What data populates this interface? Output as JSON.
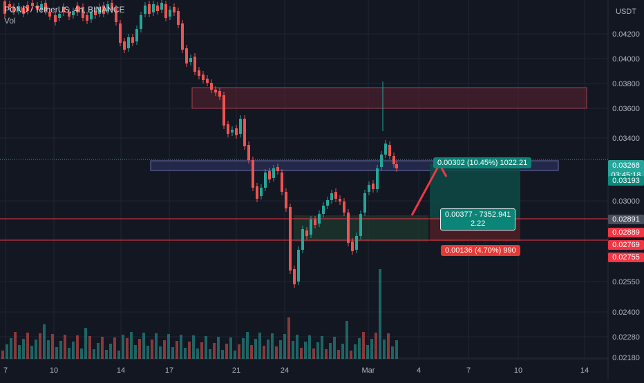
{
  "legend": {
    "symbol": "POND / TetherUS, 4h, BINANCE",
    "vol_label": "Vol"
  },
  "price_axis": {
    "currency": "USDT",
    "ticks": [
      "0.04200",
      "0.04000",
      "0.03800",
      "0.03600",
      "0.03400",
      "0.03000",
      "0.02550",
      "0.02400",
      "0.02280",
      "0.02180"
    ]
  },
  "price_tags": {
    "current_price": "0.03268",
    "countdown": "03:45:18",
    "price_2": "0.03193",
    "price_3": "0.02891",
    "price_4": "0.02889",
    "price_5": "0.02769",
    "price_6": "0.02755"
  },
  "time_axis": {
    "labels": [
      "7",
      "10",
      "14",
      "17",
      "21",
      "24",
      "Mar",
      "4",
      "7",
      "10",
      "14"
    ]
  },
  "position_tool": {
    "target_label": "0.00302 (10.45%) 1022.21",
    "center_label_line1": "0.00377 - 7352.941",
    "center_label_line2": "2.22",
    "stop_label": "0.00136 (4.70%) 990"
  },
  "colors": {
    "background": "#131722",
    "up": "#26a69a",
    "down": "#ef5350",
    "resistance_zone": "#5d2330",
    "support_zone": "#2a2e55",
    "target_fill": "#0e4a45",
    "stop_fill": "#4a1e26",
    "arrow": "#f23645"
  },
  "chart_data": {
    "type": "candlestick",
    "title": "POND / TetherUS, 4h, BINANCE",
    "ylim": [
      0.0216,
      0.0448
    ],
    "x_labels": [
      "7",
      "10",
      "14",
      "17",
      "21",
      "24",
      "Mar",
      "4",
      "7",
      "10",
      "14"
    ],
    "current_price": 0.03268,
    "zones": [
      {
        "kind": "resistance",
        "low": 0.0362,
        "high": 0.0378
      },
      {
        "kind": "support",
        "low": 0.0324,
        "high": 0.0331
      }
    ],
    "position": {
      "entry": 0.02891,
      "target": 0.03193,
      "stop": 0.02755
    }
  }
}
